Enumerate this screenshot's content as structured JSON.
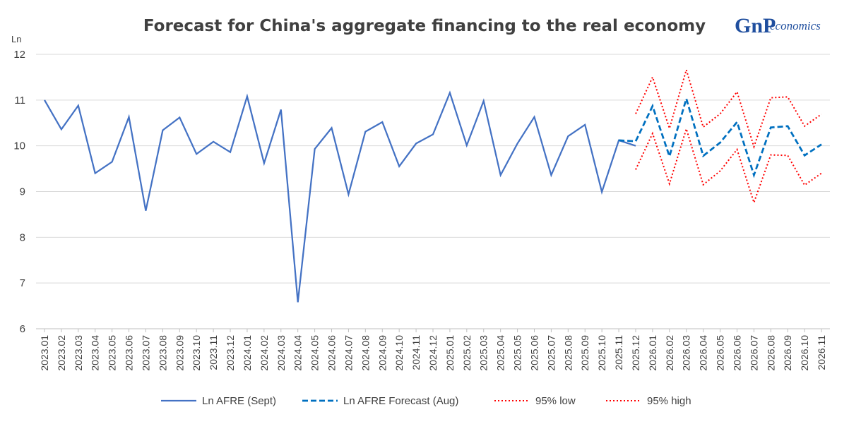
{
  "logo": {
    "main": "GnP",
    "suffix": "economics"
  },
  "chart_data": {
    "type": "line",
    "title": "Forecast for China's aggregate financing to the real economy",
    "ylabel": "Ln",
    "xlabel": "",
    "ylim": [
      6,
      12
    ],
    "yticks": [
      6,
      7,
      8,
      9,
      10,
      11,
      12
    ],
    "grid": true,
    "legend_position": "bottom",
    "categories": [
      "2023.01",
      "2023.02",
      "2023.03",
      "2023.04",
      "2023.05",
      "2023.06",
      "2023.07",
      "2023.08",
      "2023.09",
      "2023.10",
      "2023.11",
      "2023.12",
      "2024.01",
      "2024.02",
      "2024.03",
      "2024.04",
      "2024.05",
      "2024.06",
      "2024.07",
      "2024.08",
      "2024.09",
      "2024.10",
      "2024.11",
      "2024.12",
      "2025.01",
      "2025.02",
      "2025.03",
      "2025.04",
      "2025.05",
      "2025.06",
      "2025.07",
      "2025.08",
      "2025.09",
      "2025.10",
      "2025.11",
      "2025.12",
      "2026.01",
      "2026.02",
      "2026.03",
      "2026.04",
      "2026.05",
      "2026.06",
      "2026.07",
      "2026.08",
      "2026.09",
      "2026.10",
      "2026.11"
    ],
    "series": [
      {
        "name": "Ln AFRE (Sept)",
        "color": "#4472c4",
        "style": "solid",
        "values": [
          11.0,
          10.36,
          10.88,
          9.4,
          9.65,
          10.63,
          8.58,
          10.34,
          10.62,
          9.82,
          10.09,
          9.86,
          11.08,
          9.62,
          10.79,
          6.58,
          9.93,
          10.39,
          8.94,
          10.31,
          10.52,
          9.55,
          10.05,
          10.25,
          11.16,
          10.01,
          10.98,
          9.36,
          10.05,
          10.63,
          9.36,
          10.21,
          10.46,
          8.99,
          10.12,
          10.0,
          null,
          null,
          null,
          null,
          null,
          null,
          null,
          null,
          null,
          null,
          null
        ]
      },
      {
        "name": "Ln AFRE Forecast (Aug)",
        "color": "#0070c0",
        "style": "dashed",
        "values": [
          null,
          null,
          null,
          null,
          null,
          null,
          null,
          null,
          null,
          null,
          null,
          null,
          null,
          null,
          null,
          null,
          null,
          null,
          null,
          null,
          null,
          null,
          null,
          null,
          null,
          null,
          null,
          null,
          null,
          null,
          null,
          null,
          null,
          null,
          10.12,
          10.1,
          10.87,
          9.77,
          11.03,
          9.78,
          10.07,
          10.52,
          9.36,
          10.4,
          10.43,
          9.79,
          10.03
        ]
      },
      {
        "name": "95% low",
        "color": "#ff0000",
        "style": "dotted",
        "values": [
          null,
          null,
          null,
          null,
          null,
          null,
          null,
          null,
          null,
          null,
          null,
          null,
          null,
          null,
          null,
          null,
          null,
          null,
          null,
          null,
          null,
          null,
          null,
          null,
          null,
          null,
          null,
          null,
          null,
          null,
          null,
          null,
          null,
          null,
          null,
          9.48,
          10.27,
          9.17,
          10.37,
          9.15,
          9.45,
          9.92,
          8.76,
          9.8,
          9.79,
          9.14,
          9.4
        ]
      },
      {
        "name": "95% high",
        "color": "#ff0000",
        "style": "dotted",
        "values": [
          null,
          null,
          null,
          null,
          null,
          null,
          null,
          null,
          null,
          null,
          null,
          null,
          null,
          null,
          null,
          null,
          null,
          null,
          null,
          null,
          null,
          null,
          null,
          null,
          null,
          null,
          null,
          null,
          null,
          null,
          null,
          null,
          null,
          null,
          null,
          10.7,
          11.5,
          10.38,
          11.66,
          10.41,
          10.7,
          11.18,
          9.98,
          11.05,
          11.07,
          10.43,
          10.69
        ]
      }
    ]
  }
}
